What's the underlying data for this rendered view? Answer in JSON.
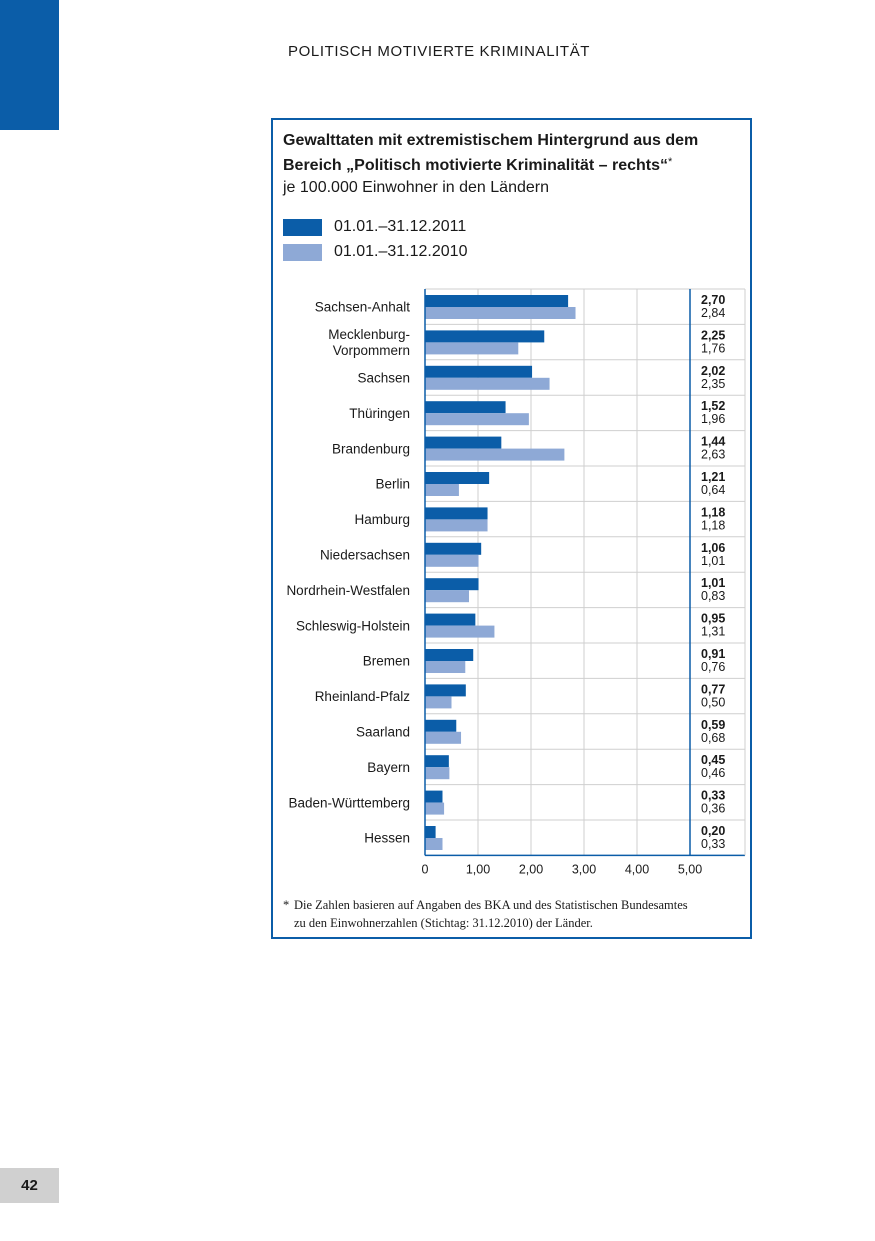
{
  "page": {
    "running_head": "POLITISCH MOTIVIERTE KRIMINALITÄT",
    "page_number": "42",
    "accent_color": "#0b5da8"
  },
  "chart_data": {
    "type": "bar",
    "orientation": "horizontal",
    "title_line1": "Gewalttaten mit extremistischem Hintergrund aus dem",
    "title_line2": "Bereich „Politisch motivierte Kriminalität – rechts“",
    "title_footnote_mark": "*",
    "subtitle": "je 100.000 Einwohner in den Ländern",
    "categories": [
      [
        "Sachsen-Anhalt"
      ],
      [
        "Mecklenburg-",
        "Vorpommern"
      ],
      [
        "Sachsen"
      ],
      [
        "Thüringen"
      ],
      [
        "Brandenburg"
      ],
      [
        "Berlin"
      ],
      [
        "Hamburg"
      ],
      [
        "Niedersachsen"
      ],
      [
        "Nordrhein-Westfalen"
      ],
      [
        "Schleswig-Holstein"
      ],
      [
        "Bremen"
      ],
      [
        "Rheinland-Pfalz"
      ],
      [
        "Saarland"
      ],
      [
        "Bayern"
      ],
      [
        "Baden-Württemberg"
      ],
      [
        "Hessen"
      ]
    ],
    "series": [
      {
        "name": "01.01.–31.12.2011",
        "color": "#0b5da8",
        "values": [
          2.7,
          2.25,
          2.02,
          1.52,
          1.44,
          1.21,
          1.18,
          1.06,
          1.01,
          0.95,
          0.91,
          0.77,
          0.59,
          0.45,
          0.33,
          0.2
        ],
        "labels": [
          "2,70",
          "2,25",
          "2,02",
          "1,52",
          "1,44",
          "1,21",
          "1,18",
          "1,06",
          "1,01",
          "0,95",
          "0,91",
          "0,77",
          "0,59",
          "0,45",
          "0,33",
          "0,20"
        ]
      },
      {
        "name": "01.01.–31.12.2010",
        "color": "#8ea9d6",
        "values": [
          2.84,
          1.76,
          2.35,
          1.96,
          2.63,
          0.64,
          1.18,
          1.01,
          0.83,
          1.31,
          0.76,
          0.5,
          0.68,
          0.46,
          0.36,
          0.33
        ],
        "labels": [
          "2,84",
          "1,76",
          "2,35",
          "1,96",
          "2,63",
          "0,64",
          "1,18",
          "1,01",
          "0,83",
          "1,31",
          "0,76",
          "0,50",
          "0,68",
          "0,46",
          "0,36",
          "0,33"
        ]
      }
    ],
    "xlim": [
      0,
      5
    ],
    "xticks": [
      0,
      1,
      2,
      3,
      4,
      5
    ],
    "xtick_labels": [
      "0",
      "1,00",
      "2,00",
      "3,00",
      "4,00",
      "5,00"
    ],
    "grid": true,
    "legend_position": "top-left"
  },
  "footnote": {
    "mark": "*",
    "line1": "Die Zahlen basieren auf Angaben des BKA und des Statistischen Bundesamtes",
    "line2": "zu den Einwohnerzahlen (Stichtag: 31.12.2010) der Länder."
  }
}
